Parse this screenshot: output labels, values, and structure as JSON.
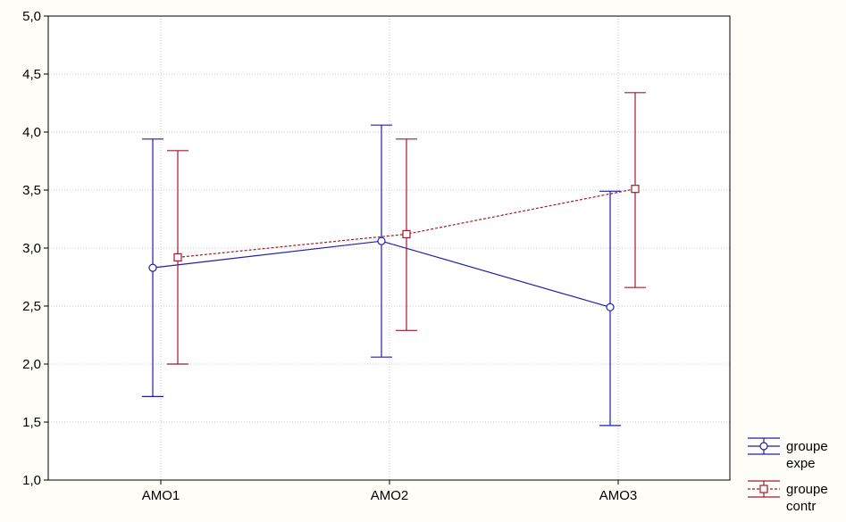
{
  "chart_data": {
    "type": "line",
    "title": "",
    "xlabel": "",
    "ylabel": "",
    "categories": [
      "AMO1",
      "AMO2",
      "AMO3"
    ],
    "ylim": [
      1.0,
      5.0
    ],
    "yticks": [
      1.0,
      1.5,
      2.0,
      2.5,
      3.0,
      3.5,
      4.0,
      4.5,
      5.0
    ],
    "ytick_labels": [
      "1,0",
      "1,5",
      "2,0",
      "2,5",
      "3,0",
      "3,5",
      "4,0",
      "4,5",
      "5,0"
    ],
    "grid": true,
    "legend_position": "bottom-right",
    "error_bars": true,
    "series": [
      {
        "name": "groupe expe",
        "legend_lines": [
          "groupe",
          "expe"
        ],
        "color": "#1f1fa8",
        "marker": "circle",
        "line_style": "solid",
        "values": [
          2.83,
          3.06,
          2.49
        ],
        "lower": [
          1.72,
          2.06,
          1.47
        ],
        "upper": [
          3.94,
          4.06,
          3.49
        ]
      },
      {
        "name": "groupe contr",
        "legend_lines": [
          "groupe",
          "contr"
        ],
        "color": "#a01a2c",
        "marker": "square",
        "line_style": "dashed",
        "values": [
          2.92,
          3.12,
          3.51
        ],
        "lower": [
          2.0,
          2.29,
          2.66
        ],
        "upper": [
          3.84,
          3.94,
          4.34
        ]
      }
    ]
  }
}
